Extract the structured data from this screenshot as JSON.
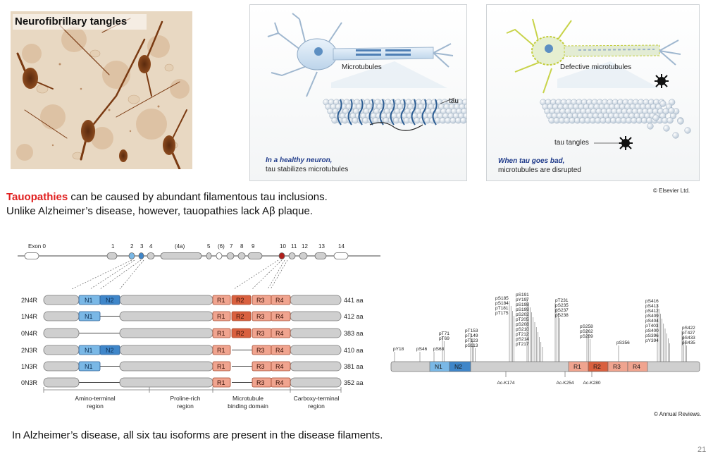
{
  "micrograph": {
    "label": "Neurofibrillary tangles"
  },
  "healthy_panel": {
    "microtubules_label": "Microtubules",
    "tau_label": "tau",
    "caption_line1": "In a healthy neuron,",
    "caption_line2": "tau stabilizes microtubules"
  },
  "defective_panel": {
    "microtubules_label": "Defective microtubules",
    "tangles_label": "tau tangles",
    "caption_line1": "When tau goes bad,",
    "caption_line2": "microtubules are disrupted"
  },
  "credit_top": "© Elsevier Ltd.",
  "text": {
    "tauopathies_word": "Tauopathies",
    "line1_rest": " can be caused by abundant filamentous tau inclusions.",
    "line2": "Unlike Alzheimer’s disease, however, tauopathies lack Aβ plaque.",
    "bottom": "In Alzheimer’s disease, all six tau isoforms are present in the disease filaments."
  },
  "gene_map": {
    "exon_labels": [
      "Exon 0",
      "1",
      "2",
      "3",
      "4",
      "(4a)",
      "5",
      "(6)",
      "7",
      "8",
      "9",
      "10",
      "11",
      "12",
      "13",
      "14"
    ],
    "colors": {
      "n_domain": "#7ab8e6",
      "r_domain": "#f0a48f",
      "r2": "#d9603f",
      "grey": "#cfcfcf"
    }
  },
  "isoforms": [
    {
      "name": "2N4R",
      "length": "441 aa",
      "n": [
        "N1",
        "N2"
      ],
      "r": [
        "R1",
        "R2",
        "R3",
        "R4"
      ]
    },
    {
      "name": "1N4R",
      "length": "412 aa",
      "n": [
        "N1"
      ],
      "r": [
        "R1",
        "R2",
        "R3",
        "R4"
      ]
    },
    {
      "name": "0N4R",
      "length": "383 aa",
      "n": [],
      "r": [
        "R1",
        "R2",
        "R3",
        "R4"
      ]
    },
    {
      "name": "2N3R",
      "length": "410 aa",
      "n": [
        "N1",
        "N2"
      ],
      "r": [
        "R1",
        "R3",
        "R4"
      ]
    },
    {
      "name": "1N3R",
      "length": "381 aa",
      "n": [
        "N1"
      ],
      "r": [
        "R1",
        "R3",
        "R4"
      ]
    },
    {
      "name": "0N3R",
      "length": "352 aa",
      "n": [],
      "r": [
        "R1",
        "R3",
        "R4"
      ]
    }
  ],
  "regions": [
    {
      "line1": "Amino-terminal",
      "line2": "region"
    },
    {
      "line1": "Proline-rich",
      "line2": "region"
    },
    {
      "line1": "Microtubule",
      "line2": "binding domain"
    },
    {
      "line1": "Carboxy-terminal",
      "line2": "region"
    }
  ],
  "ptm": {
    "domains": [
      "N1",
      "N2",
      "R1",
      "R2",
      "R3",
      "R4"
    ],
    "acetyl": [
      "Ac-K174",
      "Ac-K254",
      "Ac-K280"
    ],
    "groups": [
      [
        "pY18"
      ],
      [
        "pS46"
      ],
      [
        "pS68"
      ],
      [
        "pT71",
        "pT69"
      ],
      [
        "pT153",
        "pT149",
        "pT123",
        "pS113"
      ],
      [
        "pS185",
        "pS184",
        "pT181",
        "pT175"
      ],
      [
        "pS191",
        "pY197",
        "pS198",
        "pS199",
        "pS202",
        "pT205",
        "pS208",
        "pS210",
        "pT212",
        "pS214",
        "pT217"
      ],
      [
        "pT231",
        "pS235",
        "pS237",
        "pS238"
      ],
      [
        "pS258",
        "pS262",
        "pS289"
      ],
      [
        "pS356"
      ],
      [
        "pS416",
        "pS413",
        "pS412",
        "pS409",
        "pS404",
        "pT403",
        "pS400",
        "pS396",
        "pY394"
      ],
      [
        "pS422",
        "pT427",
        "pS433",
        "pS435"
      ]
    ]
  },
  "credit_bottom": "© Annual Reviews.",
  "slide_number": "21"
}
